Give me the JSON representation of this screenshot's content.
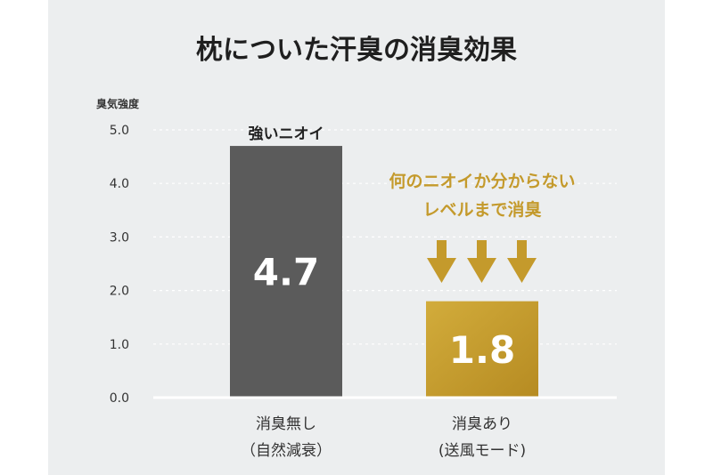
{
  "chart_data": {
    "type": "bar",
    "title": "枕についた汗臭の消臭効果",
    "ylabel": "臭気強度",
    "xlabel": "",
    "ylim": [
      0,
      5
    ],
    "yticks": [
      "0.0",
      "1.0",
      "2.0",
      "3.0",
      "4.0",
      "5.0"
    ],
    "grid": true,
    "categories": [
      [
        "消臭無し",
        "（自然減衰）"
      ],
      [
        "消臭あり",
        "(送風モード)"
      ]
    ],
    "values": [
      4.7,
      1.8
    ],
    "value_labels": [
      "4.7",
      "1.8"
    ],
    "bar_colors": [
      "#5b5b5b",
      "#c9a02e"
    ],
    "annotations": {
      "bar1_top": "強いニオイ",
      "callout": [
        "何のニオイか分からない",
        "レベルまで消臭"
      ],
      "callout_color": "#c49a2c"
    }
  }
}
